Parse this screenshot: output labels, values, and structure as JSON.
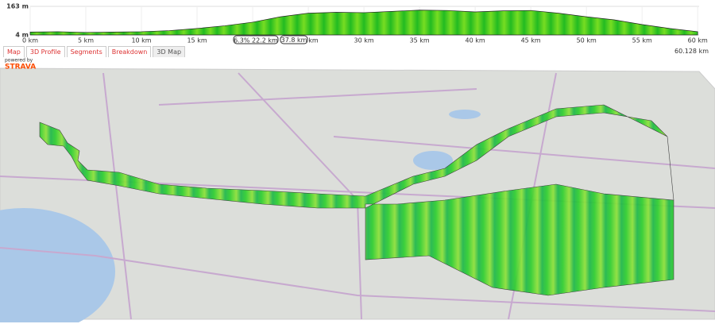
{
  "chart_data": {
    "type": "area",
    "x": [
      0,
      2.5,
      5,
      7.5,
      10,
      12.5,
      15,
      17.5,
      20,
      22.5,
      25,
      27.5,
      30,
      32.5,
      35,
      37.5,
      40,
      42.5,
      45,
      47.5,
      50,
      52.5,
      55,
      57.5,
      60
    ],
    "series": [
      {
        "color": "#33cc33",
        "values": [
          20,
          22,
          18,
          20,
          22,
          28,
          40,
          55,
          75,
          105,
          125,
          130,
          128,
          135,
          142,
          140,
          132,
          138,
          140,
          125,
          105,
          88,
          62,
          40,
          22
        ]
      }
    ],
    "xlim": [
      0,
      60.128
    ],
    "xticks": [
      {
        "value": 0,
        "label": "0 km"
      },
      {
        "value": 5,
        "label": "5 km"
      },
      {
        "value": 10,
        "label": "10 km"
      },
      {
        "value": 15,
        "label": "15 km"
      },
      {
        "value": 20,
        "label": "20 km"
      },
      {
        "value": 25,
        "label": "25 km"
      },
      {
        "value": 30,
        "label": "30 km"
      },
      {
        "value": 35,
        "label": "35 km"
      },
      {
        "value": 40,
        "label": "40 km"
      },
      {
        "value": 45,
        "label": "45 km"
      },
      {
        "value": 50,
        "label": "50 km"
      },
      {
        "value": 55,
        "label": "55 km"
      },
      {
        "value": 60,
        "label": "60 km"
      }
    ],
    "ylim": [
      4,
      163
    ],
    "yticks": [
      {
        "value": 4,
        "label": "4 m"
      },
      {
        "value": 163,
        "label": "163 m"
      }
    ],
    "grid": true
  },
  "slider": {
    "grade": "6.3%",
    "start": "22.2 km",
    "end": "37.8 km"
  },
  "total_distance": "60.128 km",
  "tabs": [
    "Map",
    "3D Profile",
    "Segments",
    "Breakdown",
    "3D Map"
  ],
  "attribution": {
    "prefix": "powered by",
    "brand": "STRAVA"
  }
}
